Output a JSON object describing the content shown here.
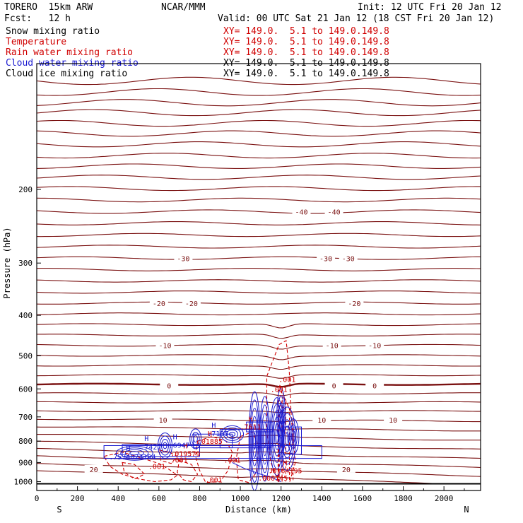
{
  "header": {
    "model": "TORERO  15km ARW",
    "org": "NCAR/MMM",
    "init": "Init: 12 UTC Fri 20 Jan 12",
    "fcst": "Fcst:   12 h",
    "valid": "Valid: 00 UTC Sat 21 Jan 12 (18 CST Fri 20 Jan 12)"
  },
  "fields": [
    {
      "name": "Snow mixing ratio",
      "xy": "XY= 149.0.  5.1 to 149.0.149.8",
      "color": "#000000"
    },
    {
      "name": "Temperature",
      "xy": "XY= 149.0.  5.1 to 149.0.149.8",
      "color": "#d00000"
    },
    {
      "name": "Rain water mixing ratio",
      "xy": "XY= 149.0.  5.1 to 149.0.149.8",
      "color": "#d00000"
    },
    {
      "name": "Cloud water mixing ratio",
      "xy": "XY= 149.0.  5.1 to 149.0.149.8",
      "color": "#1a1ad0"
    },
    {
      "name": "Cloud ice mixing ratio",
      "xy": "XY= 149.0.  5.1 to 149.0.149.8",
      "color": "#000000"
    }
  ],
  "chart_data": {
    "type": "line",
    "xlabel": "Distance (km)",
    "ylabel": "Pressure (hPa)",
    "xlim": [
      0,
      2180
    ],
    "ylim": [
      1050,
      100
    ],
    "y_scale": "log",
    "x_ticks": [
      0,
      200,
      400,
      600,
      800,
      1000,
      1200,
      1400,
      1600,
      1800,
      2000
    ],
    "y_ticks": [
      200,
      300,
      400,
      500,
      600,
      700,
      800,
      900,
      1000
    ],
    "x_end_labels": [
      "S",
      "N"
    ],
    "colors": {
      "temperature": "#7a1010",
      "rain": "#d00000",
      "cloud_water": "#1a1ad0",
      "ground": "#000000"
    },
    "surface_pressure": 1012,
    "temperature_isotherms": [
      {
        "p": 110
      },
      {
        "p": 117
      },
      {
        "p": 124
      },
      {
        "p": 131
      },
      {
        "p": 139
      },
      {
        "p": 147
      },
      {
        "p": 156
      },
      {
        "p": 166
      },
      {
        "p": 176
      },
      {
        "p": 187
      },
      {
        "p": 199
      },
      {
        "p": 212
      },
      {
        "p": 226,
        "label": "-40"
      },
      {
        "p": 241
      },
      {
        "p": 257
      },
      {
        "p": 274
      },
      {
        "p": 292,
        "label": "-30"
      },
      {
        "p": 311
      },
      {
        "p": 331
      },
      {
        "p": 352
      },
      {
        "p": 374,
        "label": "-20"
      },
      {
        "p": 397
      },
      {
        "p": 421
      },
      {
        "p": 446
      },
      {
        "p": 472,
        "label": "-10"
      },
      {
        "p": 499
      },
      {
        "p": 527
      },
      {
        "p": 556
      },
      {
        "p": 585,
        "label": "0"
      },
      {
        "p": 615
      },
      {
        "p": 646
      },
      {
        "p": 678
      },
      {
        "p": 712,
        "label": "10"
      },
      {
        "p": 746
      },
      {
        "p": 782
      },
      {
        "p": 818
      },
      {
        "p": 856
      },
      {
        "p": 894
      },
      {
        "p": 934,
        "label": "20"
      },
      {
        "p": 975
      }
    ],
    "isotherm_labels": [
      "-40",
      "-30",
      "-20",
      "-10",
      "0",
      "10",
      "20"
    ],
    "rain_labels": [
      ".001",
      ".001",
      ".001",
      ".001",
      ".001",
      ".001"
    ],
    "rain_maxima": [
      ".01885",
      ".019579",
      ".0164195",
      ".000145",
      ".7611"
    ],
    "cloud_water_maxima": [
      ".7427",
      ".6947",
      ".7135",
      ".7574027194"
    ],
    "max_marker": "H"
  }
}
